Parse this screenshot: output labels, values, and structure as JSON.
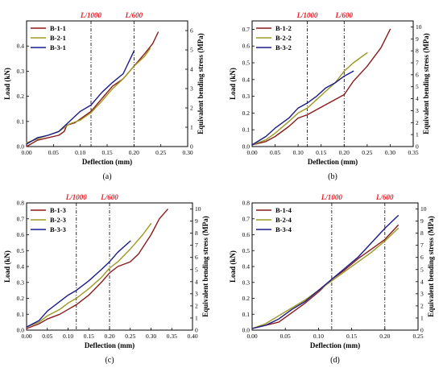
{
  "colors": {
    "red": "#8b1a1a",
    "olive": "#9a9a22",
    "blue": "#1a1a8c",
    "limit_label": "#e8202a"
  },
  "chart_data": [
    {
      "type": "line",
      "panel": "(a)",
      "xlabel": "Deflection (mm)",
      "ylabel": "Load (kN)",
      "y2label": "Equivalent bending stress (MPa)",
      "xlim": [
        0,
        0.3
      ],
      "ylim": [
        0,
        0.5
      ],
      "y2lim": [
        0,
        6.5
      ],
      "xticks": [
        0.0,
        0.05,
        0.1,
        0.15,
        0.2,
        0.25,
        0.3
      ],
      "yticks": [
        0.0,
        0.1,
        0.2,
        0.3,
        0.4
      ],
      "y2ticks": [
        0,
        1,
        2,
        3,
        4,
        5,
        6
      ],
      "limits": [
        {
          "x": 0.12,
          "label": "L/1000"
        },
        {
          "x": 0.2,
          "label": "L/600"
        }
      ],
      "legend_position": "top-left",
      "series": [
        {
          "name": "B-1-1",
          "color": "#8b1a1a",
          "x": [
            0,
            0.02,
            0.04,
            0.06,
            0.07,
            0.075,
            0.09,
            0.1,
            0.12,
            0.14,
            0.16,
            0.18,
            0.2,
            0.22,
            0.235,
            0.245
          ],
          "y": [
            0,
            0.025,
            0.035,
            0.045,
            0.06,
            0.085,
            0.095,
            0.11,
            0.14,
            0.19,
            0.24,
            0.27,
            0.32,
            0.37,
            0.41,
            0.455
          ]
        },
        {
          "name": "B-2-1",
          "color": "#9a9a22",
          "x": [
            0,
            0.02,
            0.04,
            0.06,
            0.08,
            0.1,
            0.12,
            0.14,
            0.16,
            0.18,
            0.2,
            0.22,
            0.23
          ],
          "y": [
            0.015,
            0.03,
            0.045,
            0.06,
            0.09,
            0.105,
            0.135,
            0.18,
            0.23,
            0.27,
            0.32,
            0.36,
            0.39
          ]
        },
        {
          "name": "B-3-1",
          "color": "#1a1a8c",
          "x": [
            0,
            0.02,
            0.04,
            0.06,
            0.08,
            0.1,
            0.12,
            0.14,
            0.16,
            0.18,
            0.2
          ],
          "y": [
            0.01,
            0.035,
            0.045,
            0.06,
            0.1,
            0.14,
            0.165,
            0.215,
            0.255,
            0.29,
            0.38
          ]
        }
      ]
    },
    {
      "type": "line",
      "panel": "(b)",
      "xlabel": "Deflection (mm)",
      "ylabel": "Load (kN)",
      "y2label": "Equivalent bending stress (MPa)",
      "xlim": [
        0,
        0.35
      ],
      "ylim": [
        0,
        0.75
      ],
      "y2lim": [
        0,
        10.5
      ],
      "xticks": [
        0.0,
        0.05,
        0.1,
        0.15,
        0.2,
        0.25,
        0.3,
        0.35
      ],
      "yticks": [
        0.0,
        0.1,
        0.2,
        0.3,
        0.4,
        0.5,
        0.6,
        0.7
      ],
      "y2ticks": [
        0,
        1,
        2,
        3,
        4,
        5,
        6,
        7,
        8,
        9,
        10
      ],
      "limits": [
        {
          "x": 0.12,
          "label": "L/1000"
        },
        {
          "x": 0.2,
          "label": "L/600"
        }
      ],
      "legend_position": "top-left",
      "series": [
        {
          "name": "B-1-2",
          "color": "#8b1a1a",
          "x": [
            0,
            0.03,
            0.05,
            0.08,
            0.1,
            0.12,
            0.14,
            0.16,
            0.18,
            0.2,
            0.22,
            0.25,
            0.28,
            0.3
          ],
          "y": [
            0.01,
            0.03,
            0.06,
            0.12,
            0.17,
            0.19,
            0.22,
            0.25,
            0.28,
            0.31,
            0.39,
            0.48,
            0.59,
            0.7
          ]
        },
        {
          "name": "B-2-2",
          "color": "#9a9a22",
          "x": [
            0,
            0.03,
            0.05,
            0.08,
            0.1,
            0.12,
            0.14,
            0.16,
            0.18,
            0.2,
            0.22,
            0.25
          ],
          "y": [
            0.01,
            0.04,
            0.08,
            0.15,
            0.2,
            0.23,
            0.28,
            0.33,
            0.38,
            0.45,
            0.5,
            0.56
          ]
        },
        {
          "name": "B-3-2",
          "color": "#1a1a8c",
          "x": [
            0,
            0.03,
            0.05,
            0.08,
            0.1,
            0.12,
            0.14,
            0.16,
            0.18,
            0.2,
            0.22
          ],
          "y": [
            0.01,
            0.06,
            0.11,
            0.17,
            0.23,
            0.26,
            0.3,
            0.35,
            0.38,
            0.42,
            0.45
          ]
        }
      ]
    },
    {
      "type": "line",
      "panel": "(c)",
      "xlabel": "Deflection (mm)",
      "ylabel": "Load (kN)",
      "y2label": "Equivalent bending stress (MPa)",
      "xlim": [
        0,
        0.4
      ],
      "ylim": [
        0,
        0.8
      ],
      "y2lim": [
        0,
        10.5
      ],
      "xticks": [
        0.0,
        0.05,
        0.1,
        0.15,
        0.2,
        0.25,
        0.3,
        0.35,
        0.4
      ],
      "yticks": [
        0.0,
        0.1,
        0.2,
        0.3,
        0.4,
        0.5,
        0.6,
        0.7,
        0.8
      ],
      "y2ticks": [
        0,
        1,
        2,
        3,
        4,
        5,
        6,
        7,
        8,
        9,
        10
      ],
      "limits": [
        {
          "x": 0.12,
          "label": "L/1000"
        },
        {
          "x": 0.2,
          "label": "L/600"
        }
      ],
      "legend_position": "top-left",
      "series": [
        {
          "name": "B-1-3",
          "color": "#8b1a1a",
          "x": [
            0,
            0.03,
            0.05,
            0.08,
            0.1,
            0.12,
            0.15,
            0.18,
            0.2,
            0.22,
            0.25,
            0.27,
            0.3,
            0.32,
            0.34
          ],
          "y": [
            0.01,
            0.04,
            0.07,
            0.1,
            0.13,
            0.16,
            0.22,
            0.3,
            0.36,
            0.4,
            0.43,
            0.48,
            0.6,
            0.7,
            0.76
          ]
        },
        {
          "name": "B-2-3",
          "color": "#9a9a22",
          "x": [
            0,
            0.03,
            0.05,
            0.08,
            0.1,
            0.12,
            0.15,
            0.18,
            0.2,
            0.22,
            0.25,
            0.28,
            0.3
          ],
          "y": [
            0.02,
            0.05,
            0.09,
            0.13,
            0.17,
            0.2,
            0.26,
            0.33,
            0.39,
            0.43,
            0.51,
            0.6,
            0.67
          ]
        },
        {
          "name": "B-3-3",
          "color": "#1a1a8c",
          "x": [
            0,
            0.03,
            0.05,
            0.08,
            0.1,
            0.12,
            0.15,
            0.18,
            0.2,
            0.22,
            0.25
          ],
          "y": [
            0.02,
            0.06,
            0.12,
            0.18,
            0.22,
            0.25,
            0.31,
            0.38,
            0.43,
            0.49,
            0.56
          ]
        }
      ]
    },
    {
      "type": "line",
      "panel": "(d)",
      "xlabel": "Deflection (mm)",
      "ylabel": "Load (kN)",
      "y2label": "Equivalent bending stress (MPa)",
      "xlim": [
        0,
        0.25
      ],
      "ylim": [
        0,
        0.8
      ],
      "y2lim": [
        0,
        10.5
      ],
      "xticks": [
        0.0,
        0.05,
        0.1,
        0.15,
        0.2,
        0.25
      ],
      "yticks": [
        0.0,
        0.1,
        0.2,
        0.3,
        0.4,
        0.5,
        0.6,
        0.7,
        0.8
      ],
      "y2ticks": [
        0,
        1,
        2,
        3,
        4,
        5,
        6,
        7,
        8,
        9,
        10
      ],
      "limits": [
        {
          "x": 0.12,
          "label": "L/1000"
        },
        {
          "x": 0.2,
          "label": "L/600"
        }
      ],
      "legend_position": "top-left",
      "series": [
        {
          "name": "B-1-4",
          "color": "#8b1a1a",
          "x": [
            0,
            0.02,
            0.04,
            0.06,
            0.08,
            0.1,
            0.12,
            0.14,
            0.16,
            0.18,
            0.2,
            0.22
          ],
          "y": [
            0.01,
            0.03,
            0.05,
            0.11,
            0.17,
            0.24,
            0.32,
            0.38,
            0.45,
            0.51,
            0.57,
            0.66
          ]
        },
        {
          "name": "B-2-4",
          "color": "#9a9a22",
          "x": [
            0,
            0.02,
            0.04,
            0.06,
            0.08,
            0.1,
            0.12,
            0.14,
            0.16,
            0.18,
            0.2,
            0.22
          ],
          "y": [
            0.01,
            0.04,
            0.09,
            0.14,
            0.19,
            0.25,
            0.31,
            0.37,
            0.43,
            0.49,
            0.56,
            0.64
          ]
        },
        {
          "name": "B-3-4",
          "color": "#1a1a8c",
          "x": [
            0,
            0.02,
            0.04,
            0.06,
            0.08,
            0.1,
            0.12,
            0.14,
            0.16,
            0.18,
            0.2,
            0.22
          ],
          "y": [
            0.01,
            0.03,
            0.07,
            0.13,
            0.18,
            0.25,
            0.32,
            0.39,
            0.46,
            0.55,
            0.64,
            0.72
          ]
        }
      ]
    }
  ]
}
